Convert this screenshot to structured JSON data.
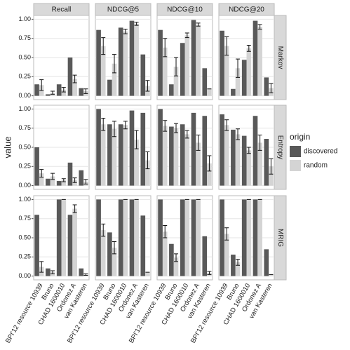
{
  "chart_data": {
    "type": "bar",
    "y_label": "value",
    "columns": [
      "Recall",
      "NDCG@5",
      "NDCG@10",
      "NDCG@20"
    ],
    "categories": [
      "BPI'12 resource 10939",
      "Bruno",
      "CHAD 1600010",
      "Ordonez A",
      "van Kasteren"
    ],
    "ylim": [
      0,
      1
    ],
    "yticks": [
      {
        "value": 0,
        "label": "0.00"
      },
      {
        "value": 0.25,
        "label": "0.25"
      },
      {
        "value": 0.5,
        "label": "0.50"
      },
      {
        "value": 0.75,
        "label": "0.75"
      },
      {
        "value": 1,
        "label": "1.00"
      }
    ],
    "grid": true,
    "legend": {
      "title": "origin",
      "position": "right",
      "series": [
        {
          "name": "discovered",
          "color": "#595959"
        },
        {
          "name": "random",
          "color": "#d4d4d4"
        }
      ]
    },
    "rows": [
      {
        "label": "Markov",
        "panels": [
          {
            "discovered": [
              0.15,
              0.02,
              0.15,
              0.5,
              0.1
            ],
            "random": [
              0.14,
              0.04,
              0.08,
              0.22,
              0.06
            ],
            "random_error": [
              0.07,
              0.02,
              0.03,
              0.05,
              0.03
            ]
          },
          {
            "discovered": [
              0.86,
              0.21,
              0.89,
              0.98,
              0.54
            ],
            "random": [
              0.65,
              0.42,
              0.84,
              0.94,
              0.13
            ],
            "random_error": [
              0.11,
              0.12,
              0.03,
              0.02,
              0.07
            ]
          },
          {
            "discovered": [
              0.86,
              0.15,
              0.69,
              0.99,
              0.36
            ],
            "random": [
              0.63,
              0.38,
              0.79,
              0.93,
              0.09
            ],
            "random_error": [
              0.12,
              0.12,
              0.03,
              0.02,
              0
            ]
          },
          {
            "discovered": [
              0.85,
              0.09,
              0.47,
              0.98,
              0.24
            ],
            "random": [
              0.65,
              0.36,
              0.62,
              0.9,
              0.1
            ],
            "random_error": [
              0.12,
              0.12,
              0.04,
              0.03,
              0.06
            ]
          }
        ]
      },
      {
        "label": "Entropy",
        "panels": [
          {
            "discovered": [
              0.5,
              0.09,
              0.06,
              0.3,
              0.2
            ],
            "random": [
              0.16,
              0.12,
              0.07,
              0.07,
              0.05
            ],
            "random_error": [
              0.05,
              0.04,
              0.02,
              0.03,
              0.03
            ]
          },
          {
            "discovered": [
              1.0,
              0.8,
              0.8,
              0.98,
              0.95
            ],
            "random": [
              0.8,
              0.74,
              0.79,
              0.6,
              0.33
            ],
            "random_error": [
              0.08,
              0.1,
              0.05,
              0.12,
              0.11
            ]
          },
          {
            "discovered": [
              1.0,
              0.77,
              0.8,
              0.95,
              0.91
            ],
            "random": [
              0.78,
              0.75,
              0.67,
              0.56,
              0.29
            ],
            "random_error": [
              0.07,
              0.06,
              0.05,
              0.1,
              0.1
            ]
          },
          {
            "discovered": [
              0.93,
              0.73,
              0.65,
              0.91,
              0.61
            ],
            "random": [
              0.79,
              0.67,
              0.46,
              0.56,
              0.25
            ],
            "random_error": [
              0.07,
              0.07,
              0.04,
              0.1,
              0.1
            ]
          }
        ]
      },
      {
        "label": "MRIG",
        "panels": [
          {
            "discovered": [
              0.8,
              0.1,
              1.0,
              0.8,
              0.1
            ],
            "random": [
              0.12,
              0.05,
              1.0,
              0.88,
              0.02
            ],
            "random_error": [
              0.07,
              0.02,
              0,
              0.05,
              0.01
            ]
          },
          {
            "discovered": [
              1.0,
              0.57,
              1.0,
              1.0,
              0.79
            ],
            "random": [
              0.6,
              0.37,
              1.0,
              1.0,
              0.05
            ],
            "random_error": [
              0.08,
              0.08,
              0,
              0,
              0
            ]
          },
          {
            "discovered": [
              1.0,
              0.42,
              1.0,
              1.0,
              0.52
            ],
            "random": [
              0.58,
              0.24,
              1.0,
              1.0,
              0.04
            ],
            "random_error": [
              0.08,
              0.05,
              0,
              0,
              0.02
            ]
          },
          {
            "discovered": [
              1.0,
              0.28,
              1.0,
              1.0,
              0.35
            ],
            "random": [
              0.55,
              0.18,
              1.0,
              1.0,
              0.02
            ],
            "random_error": [
              0.08,
              0.04,
              0,
              0,
              0
            ]
          }
        ]
      }
    ]
  }
}
